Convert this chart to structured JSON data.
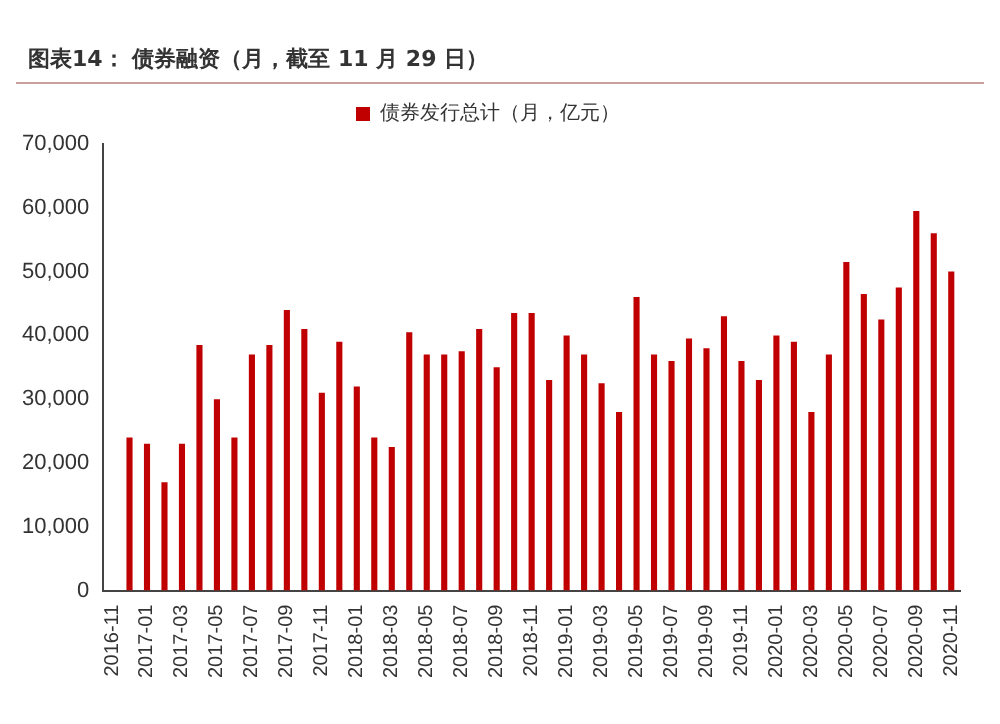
{
  "chart_data": {
    "type": "bar",
    "title": "图表14：  债券融资（月，截至 11 月 29 日）",
    "categories": [
      "2016-11",
      null,
      "2017-01",
      null,
      "2017-03",
      null,
      "2017-05",
      null,
      "2017-07",
      null,
      "2017-09",
      null,
      "2017-11",
      null,
      "2018-01",
      null,
      "2018-03",
      null,
      "2018-05",
      null,
      "2018-07",
      null,
      "2018-09",
      null,
      "2018-11",
      null,
      "2019-01",
      null,
      "2019-03",
      null,
      "2019-05",
      null,
      "2019-07",
      null,
      "2019-09",
      null,
      "2019-11",
      null,
      "2020-01",
      null,
      "2020-03",
      null,
      "2020-05",
      null,
      "2020-07",
      null,
      "2020-09",
      null,
      "2020-11"
    ],
    "series": [
      {
        "name": "债券发行总计（月，亿元）",
        "color": "#c00000",
        "values": [
          null,
          24000,
          23000,
          17000,
          23000,
          38500,
          30000,
          24000,
          37000,
          38500,
          44000,
          41000,
          31000,
          39000,
          32000,
          24000,
          22500,
          40500,
          37000,
          37000,
          37500,
          41000,
          35000,
          43500,
          43500,
          33000,
          40000,
          37000,
          32500,
          28000,
          46000,
          37000,
          36000,
          39500,
          38000,
          43000,
          36000,
          33000,
          40000,
          39000,
          28000,
          37000,
          51500,
          46500,
          42500,
          47500,
          59500,
          56000,
          50000
        ]
      }
    ],
    "ylim": [
      0,
      70000
    ],
    "yticks": [
      {
        "value": 0,
        "label": "0"
      },
      {
        "value": 10000,
        "label": "10,000"
      },
      {
        "value": 20000,
        "label": "20,000"
      },
      {
        "value": 30000,
        "label": "30,000"
      },
      {
        "value": 40000,
        "label": "40,000"
      },
      {
        "value": 50000,
        "label": "50,000"
      },
      {
        "value": 60000,
        "label": "60,000"
      },
      {
        "value": 70000,
        "label": "70,000"
      }
    ],
    "grid": false,
    "legend": "top"
  }
}
